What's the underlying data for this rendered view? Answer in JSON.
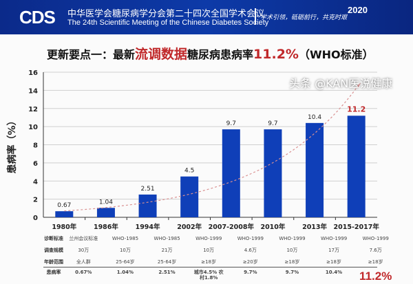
{
  "banner": {
    "logo": "CDS",
    "title_cn": "中华医学会糖尿病学分会第二十四次全国学术会议",
    "title_en": "The 24th Scientific Meeting of the Chinese Diabetes Society",
    "slogan": "学术引领，砥砺前行，共克时艰",
    "year": "2020"
  },
  "slide_title": {
    "prefix": "更新要点一：最新",
    "highlight": "流调数据",
    "middle": "糖尿病患病率",
    "value": "11.2%",
    "suffix": "（WHO标准）"
  },
  "chart_data": {
    "type": "bar",
    "ylabel": "患病率（%）",
    "ylim": [
      0,
      16
    ],
    "yticks": [
      0,
      2,
      4,
      6,
      8,
      10,
      12,
      14,
      16
    ],
    "grid": true,
    "categories": [
      "1980年",
      "1986年",
      "1994年",
      "2002年",
      "2007-2008年",
      "2010年",
      "2013年",
      "2015-2017年"
    ],
    "values": [
      0.67,
      1.04,
      2.51,
      4.5,
      9.7,
      9.7,
      10.4,
      11.2
    ],
    "data_labels": [
      "0.67",
      "1.04",
      "2.51",
      "4.5",
      "9.7",
      "9.7",
      "10.4",
      "11.2"
    ],
    "trendline": "dashed exponential",
    "colors": {
      "bar": "#0f3fb8",
      "trend": "#d99090",
      "highlight": "#c0282a"
    }
  },
  "table": {
    "rows": [
      {
        "label": "诊断标准",
        "values": [
          "兰州会议标准",
          "WHO-1985",
          "WHO-1985",
          "WHO-1999",
          "WHO-1999",
          "WHO-1999",
          "WHO-1999",
          "WHO-1999"
        ]
      },
      {
        "label": "调查规模",
        "values": [
          "30万",
          "10万",
          "21万",
          "10万",
          "4.6万",
          "10万",
          "17万",
          "7.6万"
        ]
      },
      {
        "label": "年龄范围",
        "values": [
          "全人群",
          "25-64岁",
          "25-64岁",
          "≥18岁",
          "≥20岁",
          "≥18岁",
          "≥18岁",
          "≥18岁"
        ]
      },
      {
        "label": "患病率",
        "values": [
          "0.67%",
          "1.04%",
          "2.51%",
          "城市4.5% 农村1.8%",
          "9.7%",
          "9.7%",
          "10.4%",
          "11.2%"
        ]
      }
    ]
  },
  "watermark": "头条 @KAN医说健康"
}
